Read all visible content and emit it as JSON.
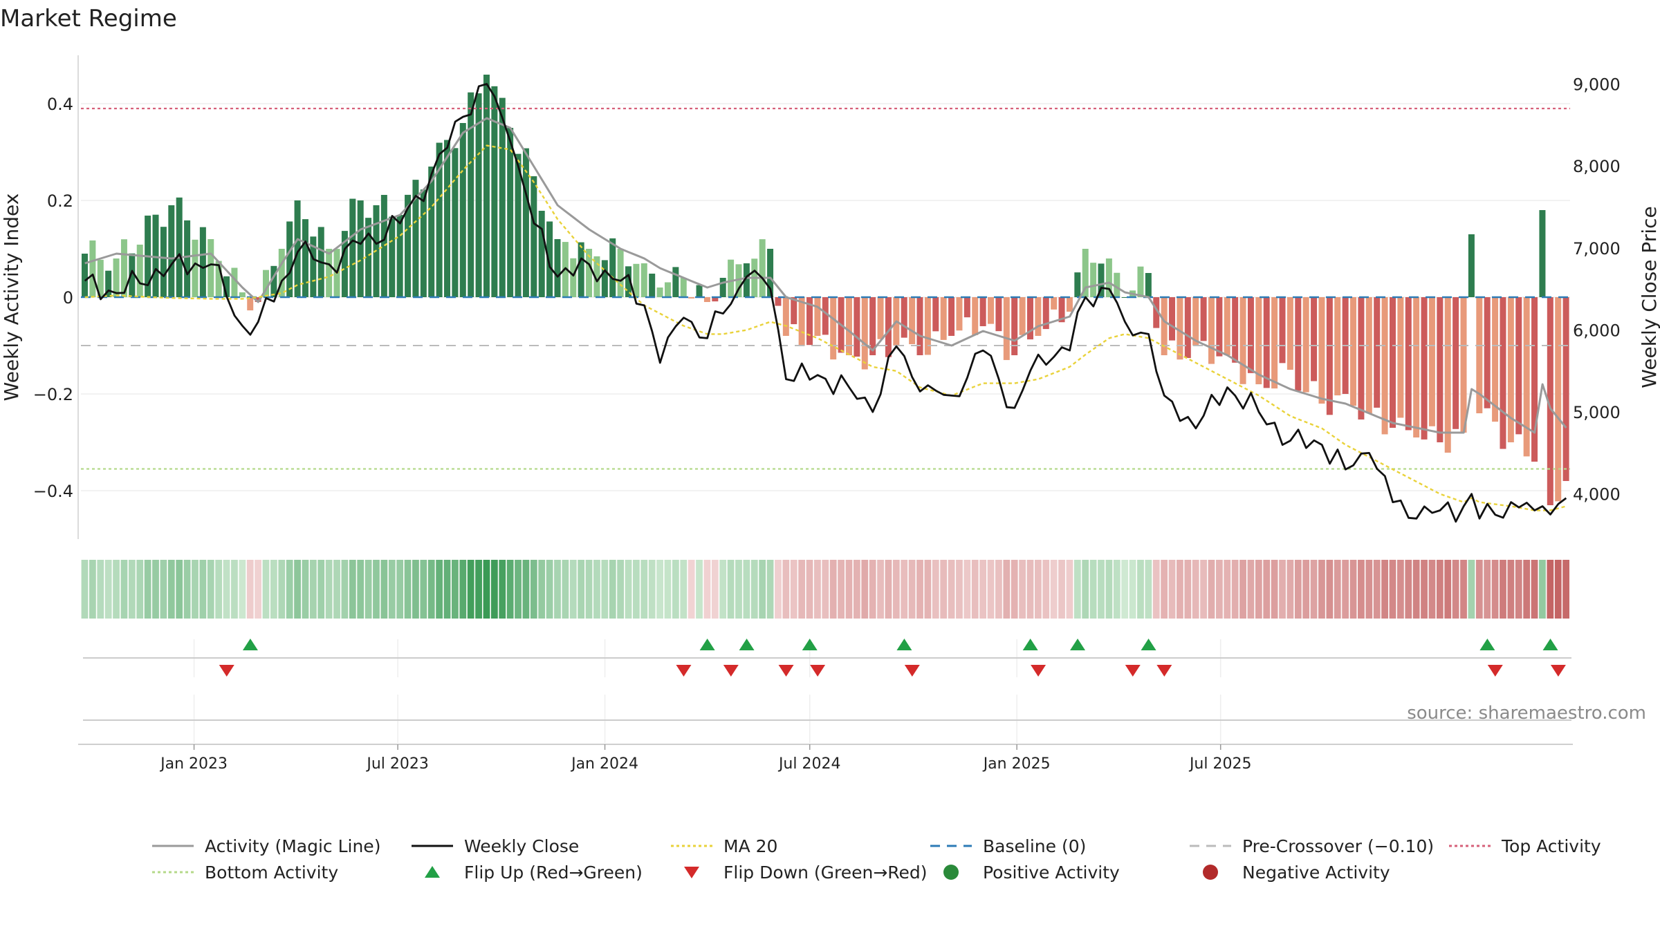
{
  "title": "Market Regime",
  "source_note": "source: sharemaestro.com",
  "colors": {
    "pos_dark": "#2e7d4f",
    "pos_light": "#8cc68a",
    "neg_dark": "#cc5b5b",
    "neg_light": "#e89a7a",
    "activity_line": "#9a9a9a",
    "close_line": "#111111",
    "ma_line": "#e9d23a",
    "baseline": "#2c7bb6",
    "pre_crossover": "#bbbbbb",
    "top": "#d6607a",
    "bottom": "#b5d98a",
    "flip_up": "#22a046",
    "flip_down": "#d42a2a"
  },
  "chart_data": {
    "type": "bar",
    "x_start": "2022-09-26",
    "x_step_days": 7,
    "x_ticks": [
      "Jan 2023",
      "Jul 2023",
      "Jan 2024",
      "Jul 2024",
      "Jan 2025",
      "Jul 2025"
    ],
    "xlabel": "",
    "ylabel": "Weekly Activity Index",
    "ylim": [
      -0.5,
      0.5
    ],
    "y_ticks": [
      0.4,
      0.2,
      0,
      -0.2,
      -0.4
    ],
    "y_tick_labels": [
      "0.4",
      "0.2",
      "0",
      "−0.2",
      "−0.4"
    ],
    "y2label": "Weekly Close Price",
    "y2lim": [
      3450,
      9350
    ],
    "y2_ticks": [
      9000,
      8000,
      7000,
      6000,
      5000,
      4000
    ],
    "y2_tick_labels": [
      "9,000",
      "8,000",
      "7,000",
      "6,000",
      "5,000",
      "4,000"
    ],
    "top_activity": 0.39,
    "bottom_activity": -0.355,
    "pre_crossover": -0.1,
    "baseline": 0,
    "anchors": [
      {
        "i": 0,
        "act": 0.09,
        "close": 6600,
        "ma": 6400,
        "magic": 0.07
      },
      {
        "i": 4,
        "act": 0.08,
        "close": 6450,
        "ma": 6420,
        "magic": 0.09
      },
      {
        "i": 11,
        "act": 0.19,
        "close": 6800,
        "ma": 6390,
        "magic": 0.08
      },
      {
        "i": 16,
        "act": 0.12,
        "close": 6800,
        "ma": 6380,
        "magic": 0.09
      },
      {
        "i": 20,
        "act": 0.01,
        "close": 6050,
        "ma": 6380,
        "magic": 0.02
      },
      {
        "i": 22,
        "act": -0.01,
        "close": 6100,
        "ma": 6400,
        "magic": -0.01
      },
      {
        "i": 25,
        "act": 0.1,
        "close": 6600,
        "ma": 6450,
        "magic": 0.07
      },
      {
        "i": 27,
        "act": 0.2,
        "close": 6950,
        "ma": 6550,
        "magic": 0.12
      },
      {
        "i": 31,
        "act": 0.1,
        "close": 6800,
        "ma": 6650,
        "magic": 0.09
      },
      {
        "i": 35,
        "act": 0.2,
        "close": 7050,
        "ma": 6850,
        "magic": 0.14
      },
      {
        "i": 40,
        "act": 0.17,
        "close": 7300,
        "ma": 7150,
        "magic": 0.17
      },
      {
        "i": 44,
        "act": 0.27,
        "close": 7900,
        "ma": 7500,
        "magic": 0.24
      },
      {
        "i": 48,
        "act": 0.36,
        "close": 8600,
        "ma": 7950,
        "magic": 0.34
      },
      {
        "i": 51,
        "act": 0.46,
        "close": 9000,
        "ma": 8250,
        "magic": 0.37
      },
      {
        "i": 54,
        "act": 0.35,
        "close": 8300,
        "ma": 8200,
        "magic": 0.35
      },
      {
        "i": 57,
        "act": 0.25,
        "close": 7300,
        "ma": 7800,
        "magic": 0.27
      },
      {
        "i": 60,
        "act": 0.12,
        "close": 6650,
        "ma": 7350,
        "magic": 0.19
      },
      {
        "i": 64,
        "act": 0.1,
        "close": 6800,
        "ma": 6900,
        "magic": 0.14
      },
      {
        "i": 68,
        "act": 0.1,
        "close": 6600,
        "ma": 6550,
        "magic": 0.1
      },
      {
        "i": 71,
        "act": 0.07,
        "close": 6300,
        "ma": 6300,
        "magic": 0.08
      },
      {
        "i": 73,
        "act": 0.02,
        "close": 5600,
        "ma": 6200,
        "magic": 0.06
      },
      {
        "i": 76,
        "act": 0.04,
        "close": 6150,
        "ma": 6050,
        "magic": 0.04
      },
      {
        "i": 79,
        "act": -0.01,
        "close": 5900,
        "ma": 5950,
        "magic": 0.02
      },
      {
        "i": 81,
        "act": 0.04,
        "close": 6200,
        "ma": 5950,
        "magic": 0.03
      },
      {
        "i": 84,
        "act": 0.07,
        "close": 6650,
        "ma": 6000,
        "magic": 0.04
      },
      {
        "i": 87,
        "act": 0.1,
        "close": 6500,
        "ma": 6100,
        "magic": 0.04
      },
      {
        "i": 89,
        "act": -0.08,
        "close": 5400,
        "ma": 6050,
        "magic": 0.0
      },
      {
        "i": 93,
        "act": -0.08,
        "close": 5450,
        "ma": 5900,
        "magic": -0.02
      },
      {
        "i": 97,
        "act": -0.12,
        "close": 5300,
        "ma": 5700,
        "magic": -0.07
      },
      {
        "i": 100,
        "act": -0.12,
        "close": 5000,
        "ma": 5550,
        "magic": -0.11
      },
      {
        "i": 103,
        "act": -0.1,
        "close": 5800,
        "ma": 5500,
        "magic": -0.05
      },
      {
        "i": 106,
        "act": -0.12,
        "close": 5250,
        "ma": 5300,
        "magic": -0.08
      },
      {
        "i": 110,
        "act": -0.08,
        "close": 5200,
        "ma": 5200,
        "magic": -0.1
      },
      {
        "i": 114,
        "act": -0.06,
        "close": 5750,
        "ma": 5350,
        "magic": -0.07
      },
      {
        "i": 118,
        "act": -0.12,
        "close": 5050,
        "ma": 5350,
        "magic": -0.09
      },
      {
        "i": 121,
        "act": -0.08,
        "close": 5700,
        "ma": 5400,
        "magic": -0.06
      },
      {
        "i": 125,
        "act": -0.03,
        "close": 5750,
        "ma": 5550,
        "magic": -0.04
      },
      {
        "i": 127,
        "act": 0.1,
        "close": 6400,
        "ma": 5700,
        "magic": 0.02
      },
      {
        "i": 130,
        "act": 0.08,
        "close": 6500,
        "ma": 5900,
        "magic": 0.03
      },
      {
        "i": 132,
        "act": 0.0,
        "close": 6100,
        "ma": 5950,
        "magic": 0.01
      },
      {
        "i": 135,
        "act": 0.05,
        "close": 5950,
        "ma": 5900,
        "magic": 0.0
      },
      {
        "i": 137,
        "act": -0.12,
        "close": 5200,
        "ma": 5800,
        "magic": -0.05
      },
      {
        "i": 141,
        "act": -0.1,
        "close": 4800,
        "ma": 5600,
        "magic": -0.09
      },
      {
        "i": 145,
        "act": -0.12,
        "close": 5300,
        "ma": 5400,
        "magic": -0.12
      },
      {
        "i": 149,
        "act": -0.18,
        "close": 5000,
        "ma": 5200,
        "magic": -0.16
      },
      {
        "i": 153,
        "act": -0.15,
        "close": 4650,
        "ma": 4950,
        "magic": -0.19
      },
      {
        "i": 157,
        "act": -0.22,
        "close": 4600,
        "ma": 4800,
        "magic": -0.21
      },
      {
        "i": 160,
        "act": -0.2,
        "close": 4300,
        "ma": 4600,
        "magic": -0.22
      },
      {
        "i": 163,
        "act": -0.24,
        "close": 4500,
        "ma": 4450,
        "magic": -0.24
      },
      {
        "i": 166,
        "act": -0.27,
        "close": 3900,
        "ma": 4300,
        "magic": -0.26
      },
      {
        "i": 169,
        "act": -0.29,
        "close": 3700,
        "ma": 4150,
        "magic": -0.27
      },
      {
        "i": 172,
        "act": -0.3,
        "close": 3800,
        "ma": 4000,
        "magic": -0.28
      },
      {
        "i": 175,
        "act": -0.28,
        "close": 3850,
        "ma": 3900,
        "magic": -0.28
      },
      {
        "i": 176,
        "act": 0.13,
        "close": 4000,
        "ma": 3950,
        "magic": -0.19
      },
      {
        "i": 177,
        "act": -0.24,
        "close": 3700,
        "ma": 3900,
        "magic": -0.2
      },
      {
        "i": 181,
        "act": -0.3,
        "close": 3900,
        "ma": 3850,
        "magic": -0.25
      },
      {
        "i": 184,
        "act": -0.34,
        "close": 3800,
        "ma": 3800,
        "magic": -0.28
      },
      {
        "i": 185,
        "act": 0.18,
        "close": 3850,
        "ma": 3800,
        "magic": -0.18
      },
      {
        "i": 186,
        "act": -0.43,
        "close": 3750,
        "ma": 3800,
        "magic": -0.23
      },
      {
        "i": 188,
        "act": -0.38,
        "close": 3950,
        "ma": 3850,
        "magic": -0.27
      }
    ],
    "flip_up_weeks": [
      21,
      79,
      84,
      92,
      104,
      120,
      126,
      135,
      178,
      186
    ],
    "flip_down_weeks": [
      18,
      76,
      82,
      89,
      93,
      105,
      121,
      133,
      137,
      179,
      187
    ]
  },
  "legend": [
    {
      "key": "activity",
      "label": "Activity (Magic Line)",
      "kind": "line",
      "color": "#9a9a9a",
      "dash": ""
    },
    {
      "key": "close",
      "label": "Weekly Close",
      "kind": "line",
      "color": "#111111",
      "dash": ""
    },
    {
      "key": "ma",
      "label": "MA 20",
      "kind": "line",
      "color": "#e9d23a",
      "dash": "4,4"
    },
    {
      "key": "baseline",
      "label": "Baseline (0)",
      "kind": "line",
      "color": "#2c7bb6",
      "dash": "14,10"
    },
    {
      "key": "pre",
      "label": "Pre-Crossover (−0.10)",
      "kind": "line",
      "color": "#bbbbbb",
      "dash": "14,10"
    },
    {
      "key": "top",
      "label": "Top Activity",
      "kind": "line",
      "color": "#d6607a",
      "dash": "4,4"
    },
    {
      "key": "bottom",
      "label": "Bottom Activity",
      "kind": "line",
      "color": "#b5d98a",
      "dash": "4,4"
    },
    {
      "key": "flipup",
      "label": "Flip Up (Red→Green)",
      "kind": "up",
      "color": "#22a046",
      "dash": ""
    },
    {
      "key": "flipdown",
      "label": "Flip Down (Green→Red)",
      "kind": "down",
      "color": "#d42a2a",
      "dash": ""
    },
    {
      "key": "posact",
      "label": "Positive Activity",
      "kind": "dot",
      "color": "#2a8a3a",
      "dash": ""
    },
    {
      "key": "negact",
      "label": "Negative Activity",
      "kind": "dot",
      "color": "#b22a2a",
      "dash": ""
    }
  ]
}
